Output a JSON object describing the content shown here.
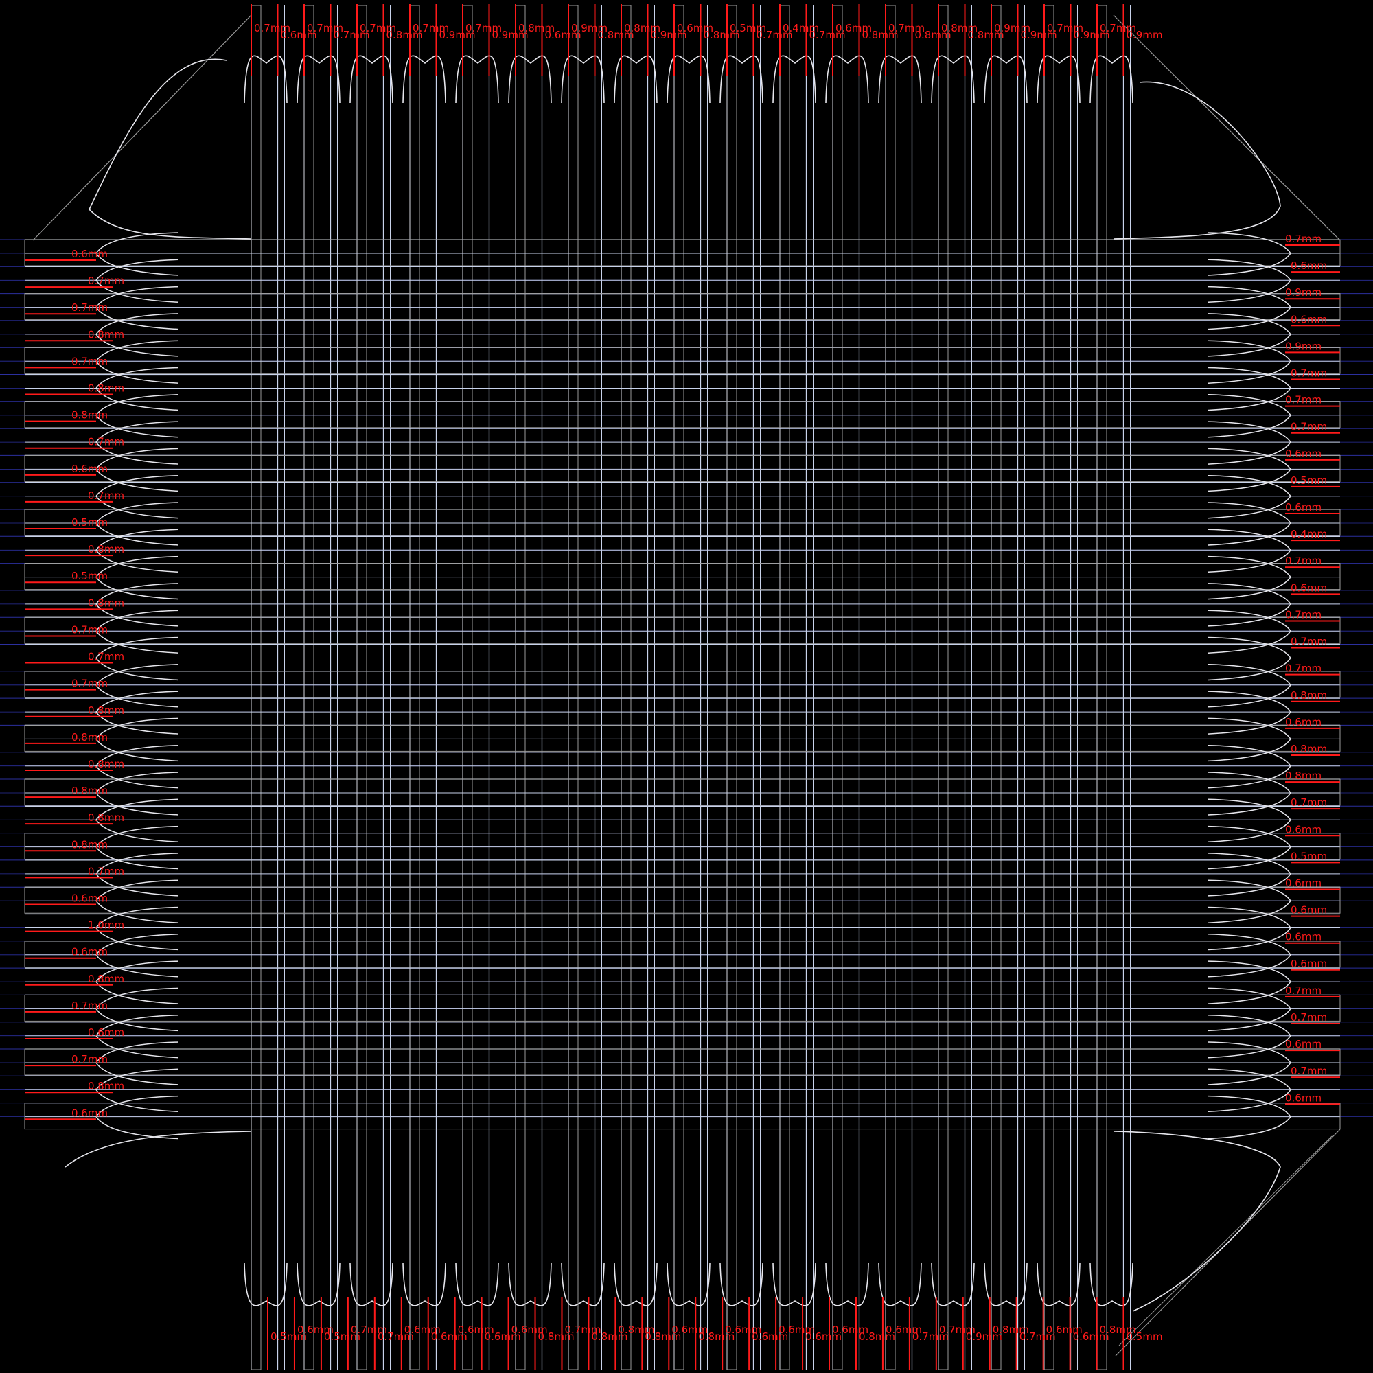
{
  "colors": {
    "background": "#000000",
    "grid_line": "#c8d2ea",
    "guide_line": "#2b2f9e",
    "lead_outline": "#9a9a9a",
    "flare_curve": "#e6e6ec",
    "measure_text": "#ff1a1a",
    "measure_line": "#ff1a1a"
  },
  "measurements": {
    "top": [
      "0.7mm",
      "0.6mm",
      "0.7mm",
      "0.7mm",
      "0.7mm",
      "0.8mm",
      "0.7mm",
      "0.9mm",
      "0.7mm",
      "0.9mm",
      "0.8mm",
      "0.6mm",
      "0.9mm",
      "0.8mm",
      "0.8mm",
      "0.9mm",
      "0.6mm",
      "0.8mm",
      "0.5mm",
      "0.7mm",
      "0.4mm",
      "0.7mm",
      "0.6mm",
      "0.8mm",
      "0.7mm",
      "0.8mm",
      "0.8mm",
      "0.8mm",
      "0.9mm",
      "0.9mm",
      "0.7mm",
      "0.9mm",
      "0.7mm",
      "0.9mm"
    ],
    "bottom": [
      "0.5mm",
      "0.6mm",
      "0.5mm",
      "0.7mm",
      "0.7mm",
      "0.6mm",
      "0.6mm",
      "0.6mm",
      "0.6mm",
      "0.6mm",
      "0.8mm",
      "0.7mm",
      "0.8mm",
      "0.8mm",
      "0.8mm",
      "0.6mm",
      "0.8mm",
      "0.6mm",
      "0.6mm",
      "0.6mm",
      "0.6mm",
      "0.6mm",
      "0.8mm",
      "0.6mm",
      "0.7mm",
      "0.7mm",
      "0.9mm",
      "0.8mm",
      "0.7mm",
      "0.6mm",
      "0.6mm",
      "0.8mm",
      "0.5mm"
    ],
    "left": [
      "0.6mm",
      "0.7mm",
      "0.7mm",
      "0.8mm",
      "0.7mm",
      "0.8mm",
      "0.8mm",
      "0.7mm",
      "0.6mm",
      "0.7mm",
      "0.5mm",
      "0.8mm",
      "0.5mm",
      "0.8mm",
      "0.7mm",
      "0.7mm",
      "0.7mm",
      "0.8mm",
      "0.8mm",
      "0.8mm",
      "0.8mm",
      "0.8mm",
      "0.8mm",
      "0.7mm",
      "0.6mm",
      "1.0mm",
      "0.6mm",
      "0.8mm",
      "0.7mm",
      "0.6mm",
      "0.7mm",
      "0.8mm",
      "0.6mm"
    ],
    "right": [
      "0.7mm",
      "0.6mm",
      "0.9mm",
      "0.6mm",
      "0.9mm",
      "0.7mm",
      "0.7mm",
      "0.7mm",
      "0.6mm",
      "0.5mm",
      "0.6mm",
      "0.4mm",
      "0.7mm",
      "0.6mm",
      "0.7mm",
      "0.7mm",
      "0.7mm",
      "0.8mm",
      "0.6mm",
      "0.8mm",
      "0.8mm",
      "0.7mm",
      "0.6mm",
      "0.5mm",
      "0.6mm",
      "0.6mm",
      "0.6mm",
      "0.6mm",
      "0.7mm",
      "0.7mm",
      "0.6mm",
      "0.7mm",
      "0.6mm"
    ]
  }
}
